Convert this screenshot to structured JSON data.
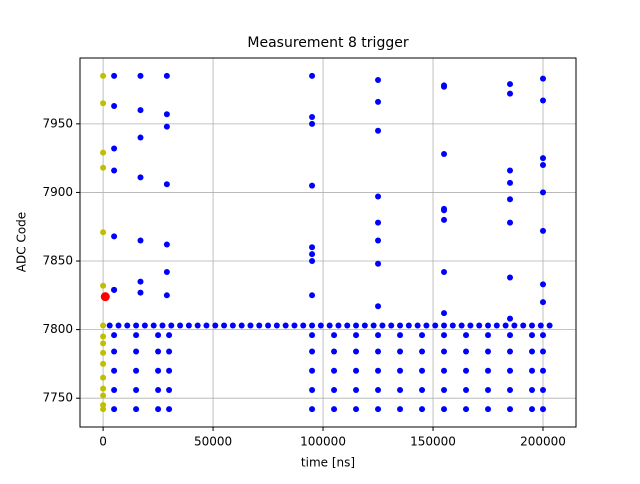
{
  "chart_data": {
    "type": "scatter",
    "title": "Measurement 8 trigger",
    "xlabel": "time [ns]",
    "ylabel": "ADC Code",
    "xlim": [
      -10500,
      215000
    ],
    "ylim": [
      7729,
      7998
    ],
    "xticks": [
      0,
      50000,
      100000,
      150000,
      200000
    ],
    "yticks": [
      7750,
      7800,
      7850,
      7900,
      7950
    ],
    "grid": true,
    "series": [
      {
        "color": "#0000ff",
        "x": [
          3000,
          7000,
          11000,
          15000,
          19000,
          23000,
          27000,
          31000,
          35000,
          39000,
          43000,
          47000,
          51000,
          55000,
          59000,
          63000,
          67000,
          71000,
          75000,
          79000,
          83000,
          87000,
          91000,
          95000,
          99000,
          103000,
          107000,
          111000,
          115000,
          119000,
          123000,
          127000,
          131000,
          135000,
          139000,
          143000,
          147000,
          151000,
          155000,
          159000,
          163000,
          167000,
          171000,
          175000,
          179000,
          183000,
          187000,
          191000,
          195000,
          199000,
          203000
        ],
        "y": [
          7803,
          7803,
          7803,
          7803,
          7803,
          7803,
          7803,
          7803,
          7803,
          7803,
          7803,
          7803,
          7803,
          7803,
          7803,
          7803,
          7803,
          7803,
          7803,
          7803,
          7803,
          7803,
          7803,
          7803,
          7803,
          7803,
          7803,
          7803,
          7803,
          7803,
          7803,
          7803,
          7803,
          7803,
          7803,
          7803,
          7803,
          7803,
          7803,
          7803,
          7803,
          7803,
          7803,
          7803,
          7803,
          7803,
          7803,
          7803,
          7803,
          7803,
          7803
        ]
      },
      {
        "color": "#0000ff",
        "x": [
          5000,
          5000,
          5000,
          5000,
          5000,
          15000,
          15000,
          15000,
          15000,
          15000,
          25000,
          25000,
          25000,
          25000,
          25000,
          30000,
          30000,
          30000,
          30000,
          30000,
          95000,
          95000,
          95000,
          95000,
          95000,
          105000,
          105000,
          105000,
          105000,
          105000,
          115000,
          115000,
          115000,
          115000,
          115000,
          125000,
          125000,
          125000,
          125000,
          125000,
          135000,
          135000,
          135000,
          135000,
          135000,
          145000,
          145000,
          145000,
          145000,
          145000,
          155000,
          155000,
          155000,
          155000,
          155000,
          165000,
          165000,
          165000,
          165000,
          165000,
          175000,
          175000,
          175000,
          175000,
          175000,
          185000,
          185000,
          185000,
          185000,
          185000,
          195000,
          195000,
          195000,
          195000,
          195000,
          200000,
          200000,
          200000,
          200000,
          200000
        ],
        "y": [
          7742,
          7756,
          7770,
          7784,
          7796,
          7742,
          7756,
          7770,
          7784,
          7796,
          7742,
          7756,
          7770,
          7784,
          7796,
          7742,
          7756,
          7770,
          7784,
          7796,
          7742,
          7756,
          7770,
          7784,
          7796,
          7742,
          7756,
          7770,
          7784,
          7796,
          7742,
          7756,
          7770,
          7784,
          7796,
          7742,
          7756,
          7770,
          7784,
          7796,
          7742,
          7756,
          7770,
          7784,
          7796,
          7742,
          7756,
          7770,
          7784,
          7796,
          7742,
          7756,
          7770,
          7784,
          7796,
          7742,
          7756,
          7770,
          7784,
          7796,
          7742,
          7756,
          7770,
          7784,
          7796,
          7742,
          7756,
          7770,
          7784,
          7796,
          7742,
          7756,
          7770,
          7784,
          7796,
          7742,
          7756,
          7770,
          7784,
          7796
        ]
      },
      {
        "color": "#0000ff",
        "x": [
          5000,
          17000,
          29000,
          5000,
          17000,
          29000,
          5000,
          17000,
          29000,
          5000,
          17000,
          29000,
          5000,
          17000,
          29000,
          5000,
          17000,
          29000,
          5000,
          17000,
          29000
        ],
        "y": [
          7985,
          7985,
          7985,
          7963,
          7960,
          7957,
          7932,
          7940,
          7948,
          7916,
          7911,
          7906,
          7868,
          7865,
          7862,
          7829,
          7835,
          7842,
          7829,
          7827,
          7825
        ]
      },
      {
        "color": "#0000ff",
        "x": [
          95000,
          125000,
          155000,
          185000,
          200000,
          95000,
          125000,
          155000,
          185000,
          200000,
          95000,
          125000,
          155000,
          185000,
          200000,
          95000,
          125000,
          155000,
          185000,
          200000,
          95000,
          125000,
          155000,
          185000,
          200000,
          95000,
          125000,
          155000,
          185000,
          200000,
          95000,
          125000,
          155000,
          185000,
          200000,
          95000,
          125000,
          155000,
          185000,
          200000
        ],
        "y": [
          7985,
          7982,
          7978,
          7979,
          7983,
          7955,
          7966,
          7977,
          7972,
          7967,
          7950,
          7945,
          7928,
          7916,
          7920,
          7905,
          7897,
          7887,
          7907,
          7925,
          7860,
          7878,
          7888,
          7878,
          7872,
          7855,
          7865,
          7880,
          7895,
          7900,
          7850,
          7848,
          7842,
          7838,
          7833,
          7825,
          7817,
          7812,
          7808,
          7820
        ]
      },
      {
        "color": "#bfbf00",
        "x": [
          0,
          0,
          0,
          0,
          0,
          0,
          0,
          0,
          0,
          0,
          0,
          0,
          0,
          0,
          0,
          0
        ],
        "y": [
          7985,
          7965,
          7929,
          7918,
          7871,
          7832,
          7803,
          7795,
          7790,
          7783,
          7775,
          7765,
          7757,
          7752,
          7745,
          7742
        ]
      },
      {
        "color": "#ff0000",
        "x": [
          1000
        ],
        "y": [
          7824
        ]
      }
    ]
  }
}
